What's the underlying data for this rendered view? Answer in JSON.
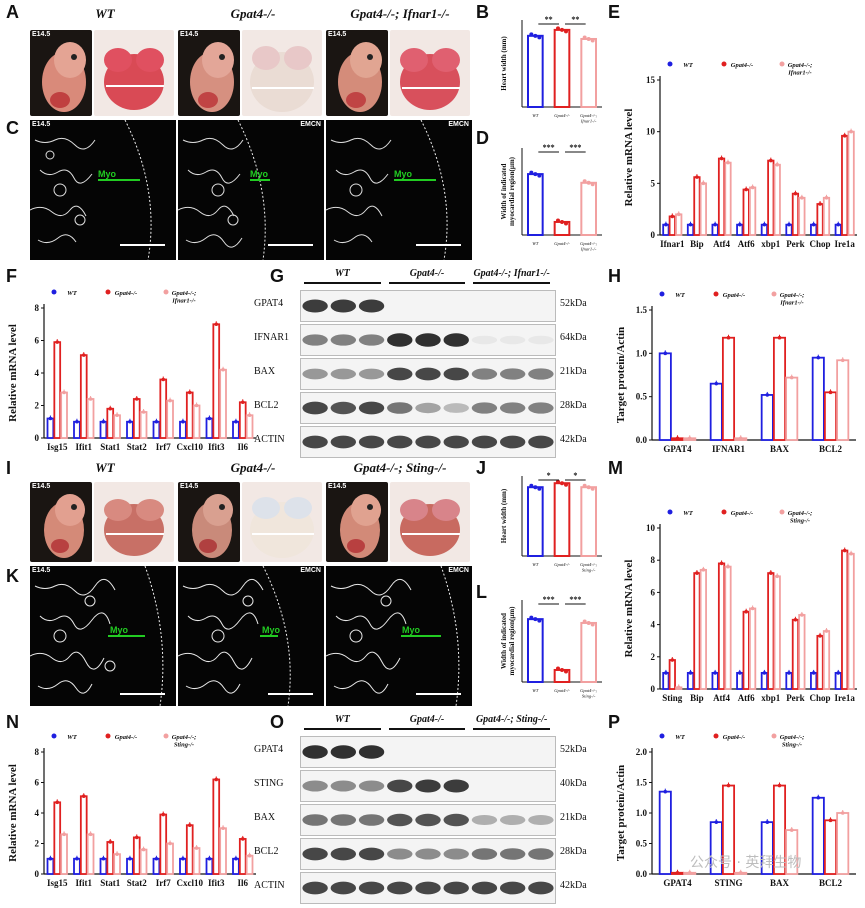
{
  "panels": {
    "A": "A",
    "B": "B",
    "C": "C",
    "D": "D",
    "E": "E",
    "F": "F",
    "G": "G",
    "H": "H",
    "I": "I",
    "J": "J",
    "K": "K",
    "L": "L",
    "M": "M",
    "N": "N",
    "O": "O",
    "P": "P"
  },
  "top_titles": [
    "WT",
    "Gpat4-/-",
    "Gpat4-/-; Ifnar1-/-"
  ],
  "bottom_titles": [
    "WT",
    "Gpat4-/-",
    "Gpat4-/-; Sting-/-"
  ],
  "stage": "E14.5",
  "emcn": "EMCN",
  "myo": "Myo",
  "legend_top": [
    "WT",
    "Gpat4-/-",
    "Gpat4-/-;\nIfnar1-/-"
  ],
  "legend_bottom": [
    "WT",
    "Gpat4-/-",
    "Gpat4-/-;\nSting-/-"
  ],
  "colors": {
    "wt": "#1f1fe0",
    "ko": "#e02020",
    "dko": "#f2a0a0",
    "myo": "#22cc22"
  },
  "blots": {
    "G": {
      "headers": [
        "WT",
        "Gpat4-/-",
        "Gpat4-/-; Ifnar1-/-"
      ],
      "rows": [
        {
          "name": "GPAT4",
          "kda": "52kDa",
          "levels": [
            0.85,
            0.85,
            0.85,
            0,
            0,
            0,
            0,
            0,
            0
          ]
        },
        {
          "name": "IFNAR1",
          "kda": "64kDa",
          "levels": [
            0.55,
            0.55,
            0.55,
            0.9,
            0.9,
            0.9,
            0.1,
            0.1,
            0.1
          ]
        },
        {
          "name": "BAX",
          "kda": "21kDa",
          "levels": [
            0.45,
            0.45,
            0.45,
            0.8,
            0.8,
            0.8,
            0.55,
            0.55,
            0.55
          ]
        },
        {
          "name": "BCL2",
          "kda": "28kDa",
          "levels": [
            0.8,
            0.75,
            0.8,
            0.6,
            0.4,
            0.3,
            0.55,
            0.55,
            0.55
          ]
        },
        {
          "name": "ACTIN",
          "kda": "42kDa",
          "levels": [
            0.8,
            0.8,
            0.8,
            0.8,
            0.8,
            0.8,
            0.8,
            0.8,
            0.8
          ]
        }
      ]
    },
    "O": {
      "headers": [
        "WT",
        "Gpat4-/-",
        "Gpat4-/-; Sting-/-"
      ],
      "rows": [
        {
          "name": "GPAT4",
          "kda": "52kDa",
          "levels": [
            0.9,
            0.9,
            0.9,
            0,
            0,
            0,
            0,
            0,
            0
          ]
        },
        {
          "name": "STING",
          "kda": "40kDa",
          "levels": [
            0.5,
            0.5,
            0.5,
            0.8,
            0.85,
            0.85,
            0.05,
            0.05,
            0.05
          ]
        },
        {
          "name": "BAX",
          "kda": "21kDa",
          "levels": [
            0.6,
            0.6,
            0.6,
            0.75,
            0.75,
            0.75,
            0.35,
            0.35,
            0.35
          ]
        },
        {
          "name": "BCL2",
          "kda": "28kDa",
          "levels": [
            0.8,
            0.8,
            0.8,
            0.5,
            0.5,
            0.5,
            0.6,
            0.6,
            0.6
          ]
        },
        {
          "name": "ACTIN",
          "kda": "42kDa",
          "levels": [
            0.8,
            0.8,
            0.8,
            0.8,
            0.8,
            0.8,
            0.8,
            0.8,
            0.8
          ]
        }
      ]
    }
  },
  "chart_data": [
    {
      "id": "B",
      "type": "bar",
      "ylabel": "Heart width (mm)",
      "categories": [
        "WT",
        "Gpat4-/-",
        "Gpat4-/-;\nIfnar1-/-"
      ],
      "values": [
        18,
        19.5,
        17.2
      ],
      "ylim": [
        0,
        22
      ],
      "sig": [
        "**",
        "**"
      ]
    },
    {
      "id": "D",
      "type": "bar",
      "ylabel": "Width of indicated\nmyocardial region(μm)",
      "categories": [
        "WT",
        "Gpat4-/-",
        "Gpat4-/-;\nIfnar1-/-"
      ],
      "values": [
        140,
        30,
        120
      ],
      "ylim": [
        0,
        200
      ],
      "sig": [
        "***",
        "***"
      ]
    },
    {
      "id": "E",
      "type": "bar",
      "ylabel": "Relative mRNA level",
      "categories": [
        "Ifnar1",
        "Bip",
        "Atf4",
        "Atf6",
        "xbp1",
        "Perk",
        "Chop",
        "Ire1a"
      ],
      "ylim": [
        0,
        15
      ],
      "yticks": [
        0,
        5,
        10,
        15
      ],
      "series": [
        {
          "name": "WT",
          "values": [
            1,
            1,
            1,
            1,
            1,
            1,
            1,
            1
          ]
        },
        {
          "name": "Gpat4-/-",
          "values": [
            1.8,
            5.6,
            7.4,
            4.4,
            7.2,
            4.0,
            3.0,
            9.6
          ]
        },
        {
          "name": "Gpat4-/-;\nIfnar1-/-",
          "values": [
            2.0,
            5.0,
            7.0,
            4.6,
            6.8,
            3.6,
            3.6,
            10.0
          ]
        }
      ]
    },
    {
      "id": "F",
      "type": "bar",
      "ylabel": "Relative mRNA level",
      "categories": [
        "Isg15",
        "Ifit1",
        "Stat1",
        "Stat2",
        "Irf7",
        "Cxcl10",
        "Ifit3",
        "Il6"
      ],
      "ylim": [
        0,
        8
      ],
      "yticks": [
        0,
        2,
        4,
        6,
        8
      ],
      "series": [
        {
          "name": "WT",
          "values": [
            1.2,
            1.0,
            1.0,
            1.0,
            1.0,
            1.0,
            1.2,
            1.0
          ]
        },
        {
          "name": "Gpat4-/-",
          "values": [
            5.9,
            5.1,
            1.8,
            2.4,
            3.6,
            2.8,
            7.0,
            2.2
          ]
        },
        {
          "name": "Gpat4-/-;\nIfnar1-/-",
          "values": [
            2.8,
            2.4,
            1.4,
            1.6,
            2.3,
            2.0,
            4.2,
            1.4
          ]
        }
      ]
    },
    {
      "id": "H",
      "type": "bar",
      "ylabel": "Target protein/Actin",
      "categories": [
        "GPAT4",
        "IFNAR1",
        "BAX",
        "BCL2"
      ],
      "ylim": [
        0,
        1.5
      ],
      "yticks": [
        0.0,
        0.5,
        1.0,
        1.5
      ],
      "series": [
        {
          "name": "WT",
          "values": [
            1.0,
            0.65,
            0.52,
            0.95
          ]
        },
        {
          "name": "Gpat4-/-",
          "values": [
            0.02,
            1.18,
            1.18,
            0.55
          ]
        },
        {
          "name": "Gpat4-/-;\nIfnar1-/-",
          "values": [
            0.02,
            0.02,
            0.72,
            0.92
          ]
        }
      ]
    },
    {
      "id": "J",
      "type": "bar",
      "ylabel": "Heart width (mm)",
      "categories": [
        "WT",
        "Gpat4-/-",
        "Gpat4-/-;\nSting-/-"
      ],
      "values": [
        17.2,
        18.2,
        17.2
      ],
      "ylim": [
        0,
        20
      ],
      "sig": [
        "*",
        "*"
      ]
    },
    {
      "id": "L",
      "type": "bar",
      "ylabel": "Width of indicated\nmyocardial region(μm)",
      "categories": [
        "WT",
        "Gpat4-/-",
        "Gpat4-/-;\nSting-/-"
      ],
      "values": [
        115,
        22,
        108
      ],
      "ylim": [
        0,
        150
      ],
      "sig": [
        "***",
        "***"
      ]
    },
    {
      "id": "M",
      "type": "bar",
      "ylabel": "Relative mRNA level",
      "categories": [
        "Sting",
        "Bip",
        "Atf4",
        "Atf6",
        "xbp1",
        "Perk",
        "Chop",
        "Ire1a"
      ],
      "ylim": [
        0,
        10
      ],
      "yticks": [
        0,
        2,
        4,
        6,
        8,
        10
      ],
      "series": [
        {
          "name": "WT",
          "values": [
            1,
            1,
            1,
            1,
            1,
            1,
            1,
            1
          ]
        },
        {
          "name": "Gpat4-/-",
          "values": [
            1.8,
            7.2,
            7.8,
            4.8,
            7.2,
            4.3,
            3.3,
            8.6
          ]
        },
        {
          "name": "Gpat4-/-;\nSting-/-",
          "values": [
            0.1,
            7.4,
            7.6,
            5.0,
            7.0,
            4.6,
            3.6,
            8.4
          ]
        }
      ]
    },
    {
      "id": "N",
      "type": "bar",
      "ylabel": "Relative mRNA level",
      "categories": [
        "Isg15",
        "Ifit1",
        "Stat1",
        "Stat2",
        "Irf7",
        "Cxcl10",
        "Ifit3",
        "Il6"
      ],
      "ylim": [
        0,
        8
      ],
      "yticks": [
        0,
        2,
        4,
        6,
        8
      ],
      "series": [
        {
          "name": "WT",
          "values": [
            1.0,
            1.0,
            1.0,
            1.0,
            1.0,
            1.0,
            1.0,
            1.0
          ]
        },
        {
          "name": "Gpat4-/-",
          "values": [
            4.7,
            5.1,
            2.1,
            2.4,
            3.9,
            3.2,
            6.2,
            2.3
          ]
        },
        {
          "name": "Gpat4-/-;\nSting-/-",
          "values": [
            2.6,
            2.6,
            1.3,
            1.6,
            2.0,
            1.7,
            3.0,
            1.2
          ]
        }
      ]
    },
    {
      "id": "P",
      "type": "bar",
      "ylabel": "Target protein/Actin",
      "categories": [
        "GPAT4",
        "STING",
        "BAX",
        "BCL2"
      ],
      "ylim": [
        0,
        2.0
      ],
      "yticks": [
        0.0,
        0.5,
        1.0,
        1.5,
        2.0
      ],
      "series": [
        {
          "name": "WT",
          "values": [
            1.35,
            0.85,
            0.85,
            1.25
          ]
        },
        {
          "name": "Gpat4-/-",
          "values": [
            0.02,
            1.45,
            1.45,
            0.88
          ]
        },
        {
          "name": "Gpat4-/-;\nSting-/-",
          "values": [
            0.02,
            0.02,
            0.72,
            1.0
          ]
        }
      ]
    }
  ],
  "watermark": "公众号 · 英拜生物"
}
